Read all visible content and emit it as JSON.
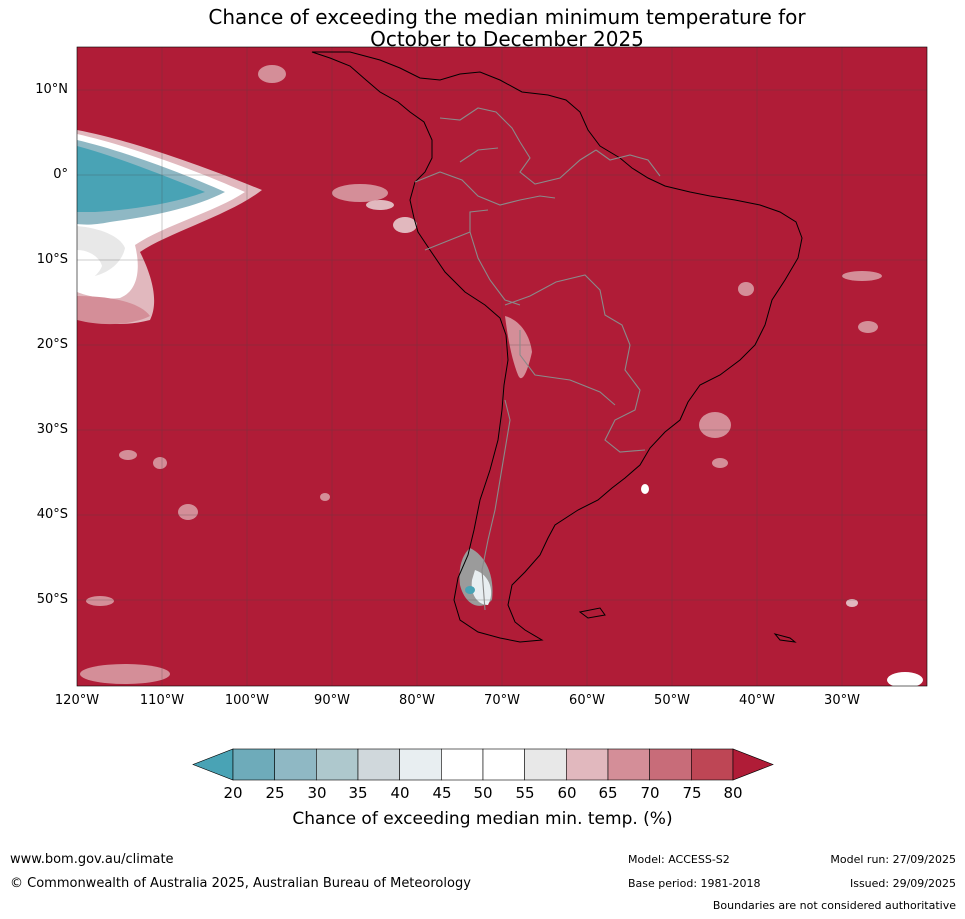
{
  "title": {
    "line1": "Chance of exceeding the median minimum temperature for",
    "line2": "October to December 2025"
  },
  "map": {
    "region": "South America",
    "projection": "equirectangular",
    "lon_range_deg": [
      -120,
      -20
    ],
    "lat_range_deg": [
      -60,
      15
    ],
    "background_color": "#b01c37",
    "lat_labels": [
      "10°N",
      "0°",
      "10°S",
      "20°S",
      "30°S",
      "40°S",
      "50°S"
    ],
    "lon_labels": [
      "120°W",
      "110°W",
      "100°W",
      "90°W",
      "80°W",
      "70°W",
      "60°W",
      "50°W",
      "40°W",
      "30°W"
    ]
  },
  "colorbar": {
    "ticks": [
      "20",
      "25",
      "30",
      "35",
      "40",
      "45",
      "50",
      "55",
      "60",
      "65",
      "70",
      "75",
      "80"
    ],
    "colors": [
      "#49a3b5",
      "#6eabba",
      "#8fb8c4",
      "#aec8cd",
      "#d0d8dc",
      "#e8eef1",
      "#ffffff",
      "#ffffff",
      "#e8e8e8",
      "#e1b8be",
      "#d48e98",
      "#c86c79",
      "#be4655",
      "#b01c37"
    ],
    "label": "Chance of exceeding median min. temp. (%)"
  },
  "footer": {
    "website": "www.bom.gov.au/climate",
    "copyright": "© Commonwealth of Australia 2025, Australian Bureau of Meteorology",
    "model": "Model: ACCESS-S2",
    "base_period": "Base period: 1981-2018",
    "model_run": "Model run: 27/09/2025",
    "issued": "Issued: 29/09/2025",
    "disclaimer": "Boundaries are not considered authoritative"
  }
}
